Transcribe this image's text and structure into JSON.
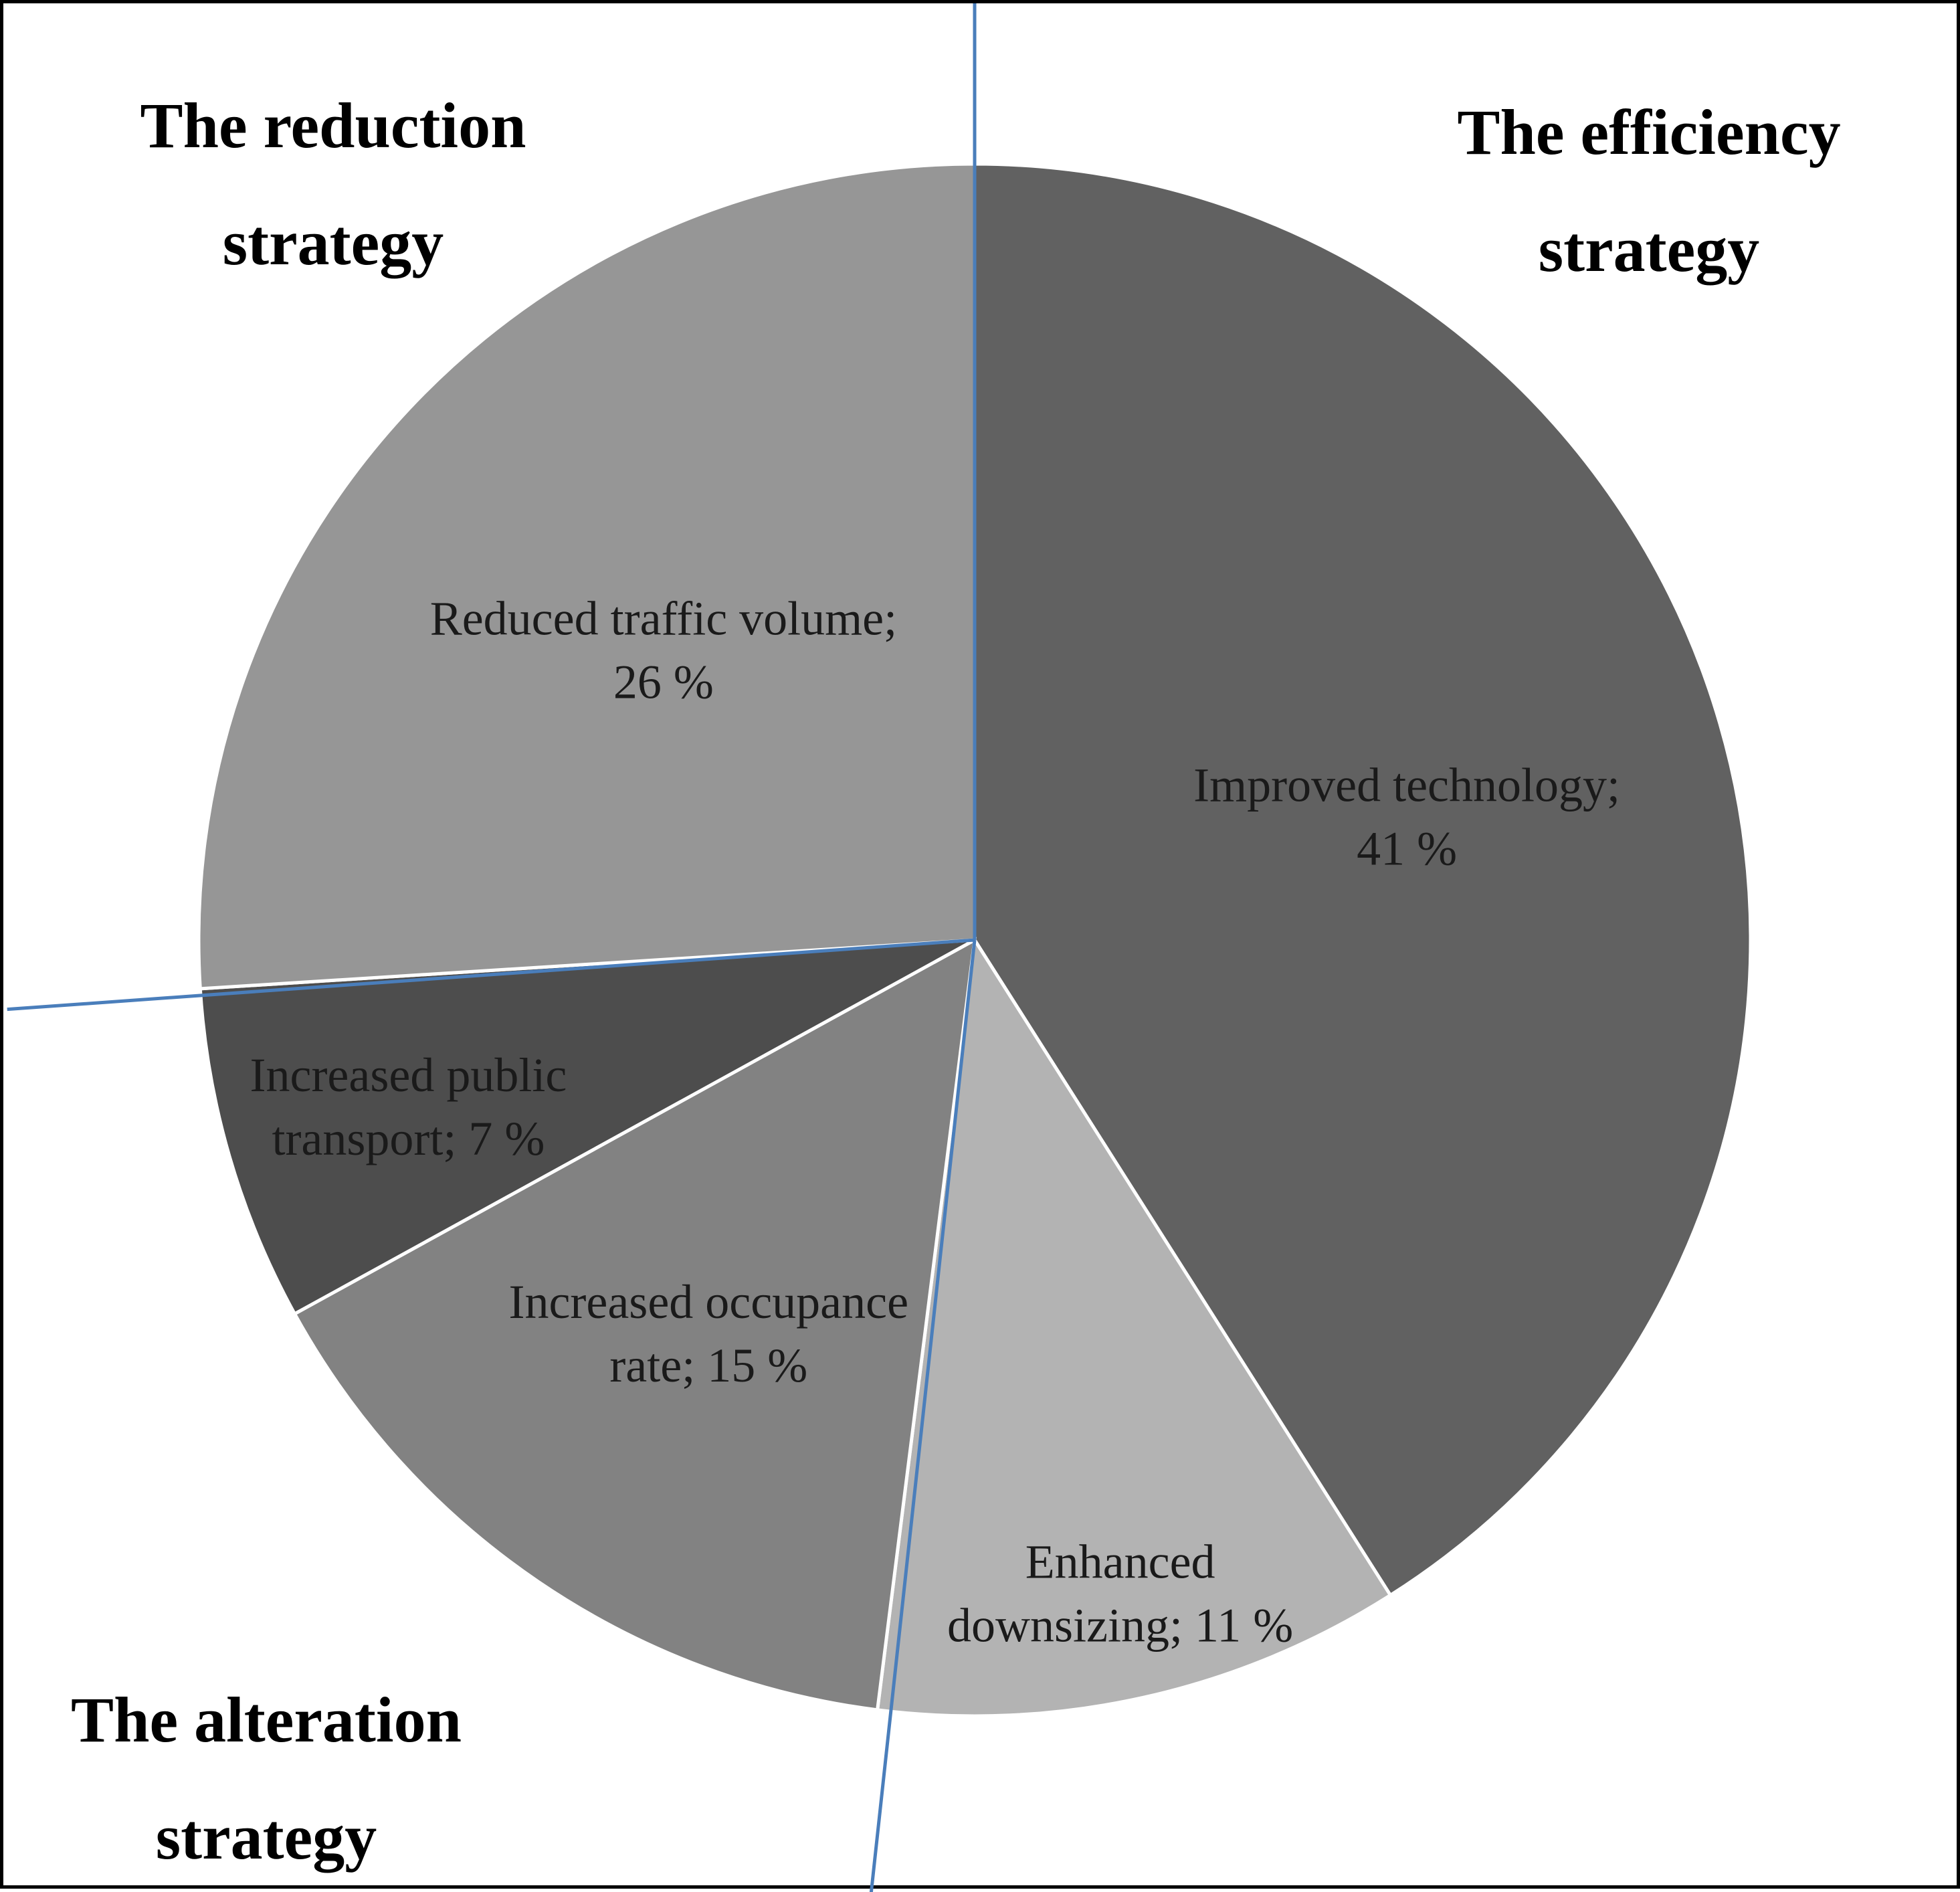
{
  "chart_data": {
    "type": "pie",
    "start_angle_deg": 0,
    "direction": "clockwise",
    "slices": [
      {
        "label": "Improved technology",
        "value": 41,
        "value_text": "41 %",
        "label_lines": [
          "Improved technology;",
          "41 %"
        ],
        "color": "#616161"
      },
      {
        "label": "Enhanced downsizing",
        "value": 11,
        "value_text": "11 %",
        "label_lines": [
          "Enhanced",
          "downsizing; 11 %"
        ],
        "color": "#b3b3b3"
      },
      {
        "label": "Increased occupance rate",
        "value": 15,
        "value_text": "15 %",
        "label_lines": [
          "Increased occupance",
          "rate; 15 %"
        ],
        "color": "#828282"
      },
      {
        "label": "Increased public transport",
        "value": 7,
        "value_text": "7 %",
        "label_lines": [
          "Increased public",
          "transport; 7 %"
        ],
        "color": "#4d4d4d"
      },
      {
        "label": "Reduced traffic volume",
        "value": 26,
        "value_text": "26 %",
        "label_lines": [
          "Reduced traffic volume;",
          "26 %"
        ],
        "color": "#969696"
      }
    ],
    "strategy_groups": [
      {
        "name": "The efficiency strategy",
        "label_lines": [
          "The efficiency",
          "strategy"
        ]
      },
      {
        "name": "The alteration strategy",
        "label_lines": [
          "The alteration",
          "strategy"
        ]
      },
      {
        "name": "The reduction strategy",
        "label_lines": [
          "The reduction",
          "strategy"
        ]
      }
    ],
    "divider_color": "#4a7ebb",
    "slice_border_color": "#ffffff"
  }
}
